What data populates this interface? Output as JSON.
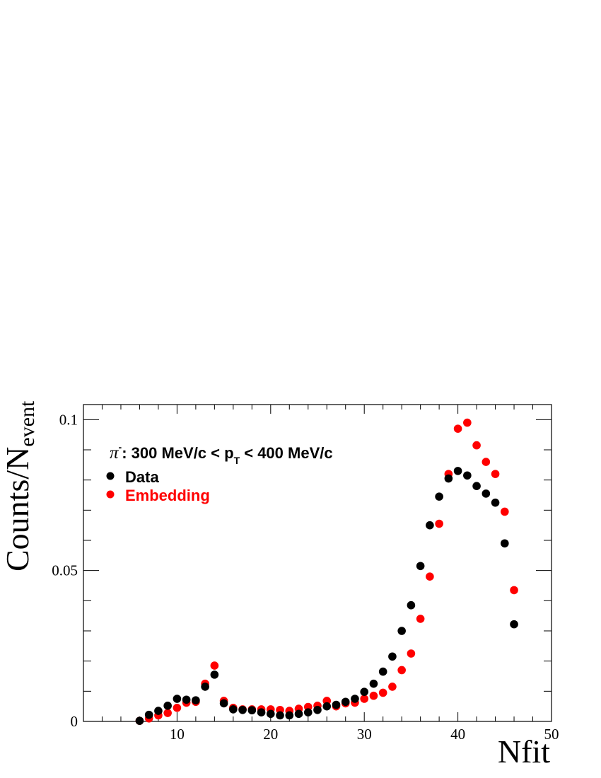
{
  "chart_data": {
    "type": "scatter",
    "title": "",
    "xlabel": "Nfit",
    "ylabel": {
      "main": "Counts/N",
      "sub": "event"
    },
    "xlim": [
      0,
      50
    ],
    "ylim": [
      0,
      0.105
    ],
    "xticks": [
      10,
      20,
      30,
      40,
      50
    ],
    "yticks": [
      0,
      0.05,
      0.1
    ],
    "xtick_labels": [
      "10",
      "20",
      "30",
      "40",
      "50"
    ],
    "ytick_labels": [
      "0",
      "0.05",
      "0.1"
    ],
    "grid": false,
    "annotation": {
      "particle": "π",
      "charge": "-",
      "text_before_sub": ": 300 MeV/c < p",
      "sub": "T",
      "text_after_sub": " < 400 MeV/c"
    },
    "legend_position": "top-left",
    "series": [
      {
        "name": "Data",
        "color": "#000000",
        "x": [
          6,
          7,
          8,
          9,
          10,
          11,
          12,
          13,
          14,
          15,
          16,
          17,
          18,
          19,
          20,
          21,
          22,
          23,
          24,
          25,
          26,
          27,
          28,
          29,
          30,
          31,
          32,
          33,
          34,
          35,
          36,
          37,
          38,
          39,
          40,
          41,
          42,
          43,
          44,
          45,
          46
        ],
        "y": [
          0.0002,
          0.0022,
          0.0035,
          0.0052,
          0.0075,
          0.0072,
          0.007,
          0.0115,
          0.0155,
          0.006,
          0.004,
          0.0038,
          0.0037,
          0.003,
          0.0025,
          0.002,
          0.002,
          0.0025,
          0.003,
          0.0038,
          0.005,
          0.0055,
          0.0065,
          0.0075,
          0.0098,
          0.0125,
          0.0165,
          0.0215,
          0.03,
          0.0385,
          0.0515,
          0.065,
          0.0745,
          0.0805,
          0.083,
          0.0815,
          0.078,
          0.0755,
          0.0725,
          0.059,
          0.0322
        ]
      },
      {
        "name": "Embedding",
        "color": "#ff0000",
        "x": [
          6,
          7,
          8,
          9,
          10,
          11,
          12,
          13,
          14,
          15,
          16,
          17,
          18,
          19,
          20,
          21,
          22,
          23,
          24,
          25,
          26,
          27,
          28,
          29,
          30,
          31,
          32,
          33,
          34,
          35,
          36,
          37,
          38,
          39,
          40,
          41,
          42,
          43,
          44,
          45,
          46
        ],
        "y": [
          0.0002,
          0.001,
          0.002,
          0.0028,
          0.0045,
          0.0062,
          0.0065,
          0.0125,
          0.0185,
          0.0068,
          0.0045,
          0.004,
          0.004,
          0.004,
          0.004,
          0.0038,
          0.0035,
          0.0042,
          0.0048,
          0.0052,
          0.0068,
          0.005,
          0.006,
          0.0062,
          0.0075,
          0.0085,
          0.0095,
          0.0115,
          0.017,
          0.0225,
          0.034,
          0.048,
          0.0655,
          0.082,
          0.097,
          0.099,
          0.0915,
          0.086,
          0.082,
          0.0695,
          0.0435
        ]
      }
    ]
  }
}
